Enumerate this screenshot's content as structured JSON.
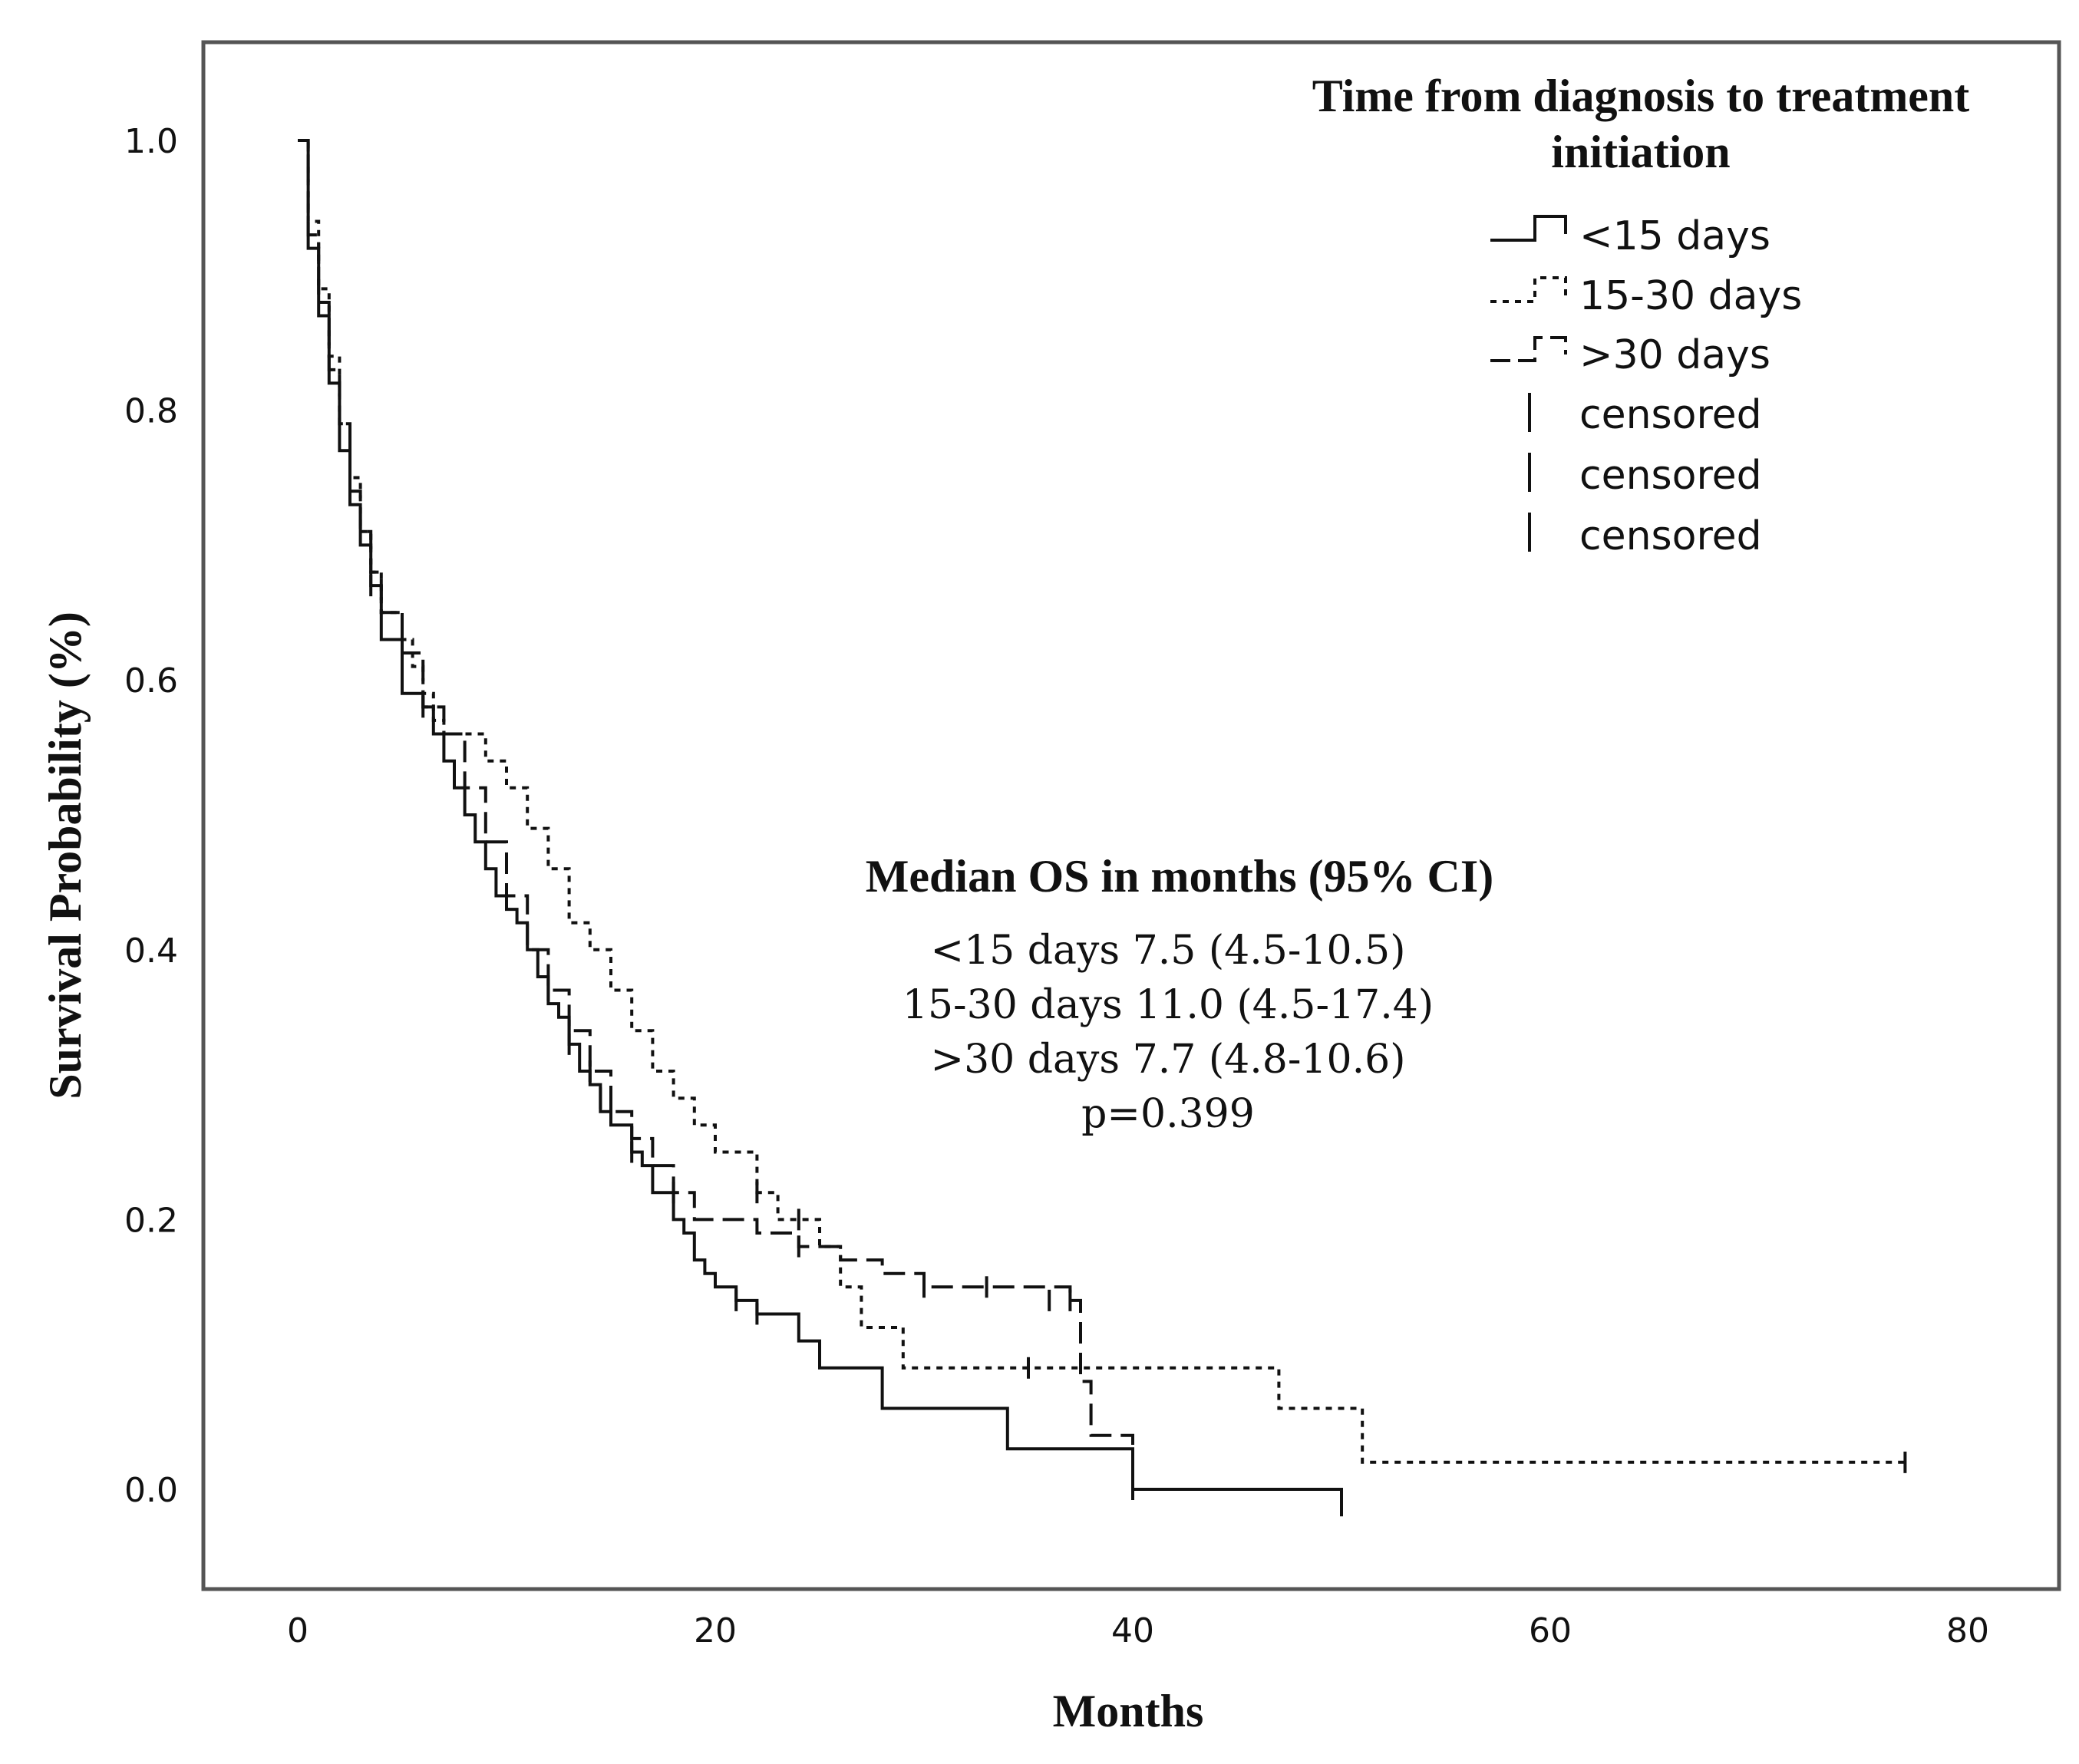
{
  "chart_data": {
    "type": "line",
    "subtype": "kaplan-meier survival curve",
    "xlabel": "Months",
    "ylabel": "Survival Probability (%)",
    "xlim": [
      -5,
      85
    ],
    "ylim": [
      -0.07,
      1.07
    ],
    "x_ticks": [
      0,
      20,
      40,
      60,
      80
    ],
    "x_tick_labels": [
      "0",
      "20",
      "40",
      "60",
      "80"
    ],
    "y_ticks": [
      0,
      0.2,
      0.4,
      0.6,
      0.8,
      1.0
    ],
    "y_tick_labels": [
      "0.0",
      "0.2",
      "0.4",
      "0.6",
      "0.8",
      "1.0"
    ],
    "grid": false,
    "legend": {
      "title_lines": [
        "Time from diagnosis to treatment",
        "initiation"
      ],
      "placement": "top-right",
      "entries": [
        "<15 days",
        "15-30 days",
        ">30 days",
        "censored",
        "censored",
        "censored"
      ]
    },
    "annotation": {
      "title": "Median OS in months (95% CI)",
      "lines": [
        "<15 days 7.5 (4.5-10.5)",
        "15-30 days 11.0 (4.5-17.4)",
        ">30 days 7.7 (4.8-10.6)",
        "p=0.399"
      ]
    },
    "series": [
      {
        "name": "<15 days",
        "style": "solid",
        "x": [
          0,
          0.5,
          1,
          1.5,
          2,
          2.5,
          3,
          3.5,
          4,
          5,
          6,
          6.5,
          7,
          7.5,
          8,
          8.5,
          9,
          9.5,
          10,
          10.5,
          11,
          11.5,
          12,
          12.5,
          13,
          13.5,
          14,
          14.5,
          15,
          16,
          16.5,
          17,
          18,
          18.5,
          19,
          19.5,
          20,
          21,
          22,
          24,
          25,
          28,
          34,
          37,
          40,
          50,
          50
        ],
        "y": [
          1.0,
          0.92,
          0.87,
          0.82,
          0.77,
          0.73,
          0.7,
          0.67,
          0.63,
          0.59,
          0.58,
          0.56,
          0.54,
          0.52,
          0.5,
          0.48,
          0.46,
          0.44,
          0.43,
          0.42,
          0.4,
          0.38,
          0.36,
          0.35,
          0.33,
          0.31,
          0.3,
          0.28,
          0.27,
          0.25,
          0.24,
          0.22,
          0.2,
          0.19,
          0.17,
          0.16,
          0.15,
          0.14,
          0.13,
          0.11,
          0.09,
          0.06,
          0.03,
          0.03,
          0.0,
          0.0,
          -0.02
        ]
      },
      {
        "name": "15-30 days",
        "style": "dotted",
        "x": [
          0,
          0.5,
          1,
          1.5,
          2,
          2.5,
          3,
          3.5,
          4,
          5,
          5.5,
          6,
          6.5,
          7,
          8,
          9,
          10,
          11,
          12,
          13,
          14,
          15,
          16,
          17,
          18,
          19,
          20,
          22,
          23,
          25,
          26,
          27,
          29,
          35,
          40,
          47,
          51,
          60,
          77
        ],
        "y": [
          1.0,
          0.94,
          0.89,
          0.84,
          0.79,
          0.75,
          0.71,
          0.68,
          0.65,
          0.63,
          0.61,
          0.59,
          0.57,
          0.56,
          0.56,
          0.54,
          0.52,
          0.49,
          0.46,
          0.42,
          0.4,
          0.37,
          0.34,
          0.31,
          0.29,
          0.27,
          0.25,
          0.22,
          0.2,
          0.18,
          0.15,
          0.12,
          0.09,
          0.09,
          0.09,
          0.06,
          0.02,
          0.02,
          0.02
        ]
      },
      {
        "name": ">30 days",
        "style": "dashed",
        "x": [
          0,
          0.5,
          1,
          1.5,
          2,
          2.5,
          3,
          3.5,
          4,
          5,
          6,
          7,
          8,
          9,
          10,
          11,
          12,
          13,
          14,
          15,
          16,
          17,
          18,
          19,
          20,
          22,
          24,
          26,
          28,
          30,
          33,
          37,
          37.5,
          38,
          40
        ],
        "y": [
          1.0,
          0.93,
          0.88,
          0.83,
          0.79,
          0.74,
          0.71,
          0.68,
          0.65,
          0.62,
          0.58,
          0.56,
          0.52,
          0.48,
          0.44,
          0.4,
          0.37,
          0.34,
          0.31,
          0.28,
          0.26,
          0.24,
          0.22,
          0.2,
          0.2,
          0.19,
          0.18,
          0.17,
          0.16,
          0.15,
          0.15,
          0.14,
          0.08,
          0.04,
          0.03
        ]
      }
    ],
    "censor_marks": [
      {
        "series": "<15 days",
        "x": [
          3.5,
          6,
          13,
          14.5,
          16,
          21,
          22,
          40
        ],
        "y": [
          0.67,
          0.58,
          0.33,
          0.29,
          0.25,
          0.14,
          0.13,
          0.0
        ]
      },
      {
        "series": "15-30 days",
        "x": [
          22,
          24,
          35,
          77
        ],
        "y": [
          0.22,
          0.2,
          0.09,
          0.02
        ]
      },
      {
        "series": ">30 days",
        "x": [
          12,
          13,
          14,
          15,
          18,
          24,
          30,
          33,
          36,
          37
        ],
        "y": [
          0.37,
          0.34,
          0.31,
          0.28,
          0.22,
          0.18,
          0.15,
          0.15,
          0.14,
          0.14
        ]
      }
    ]
  }
}
